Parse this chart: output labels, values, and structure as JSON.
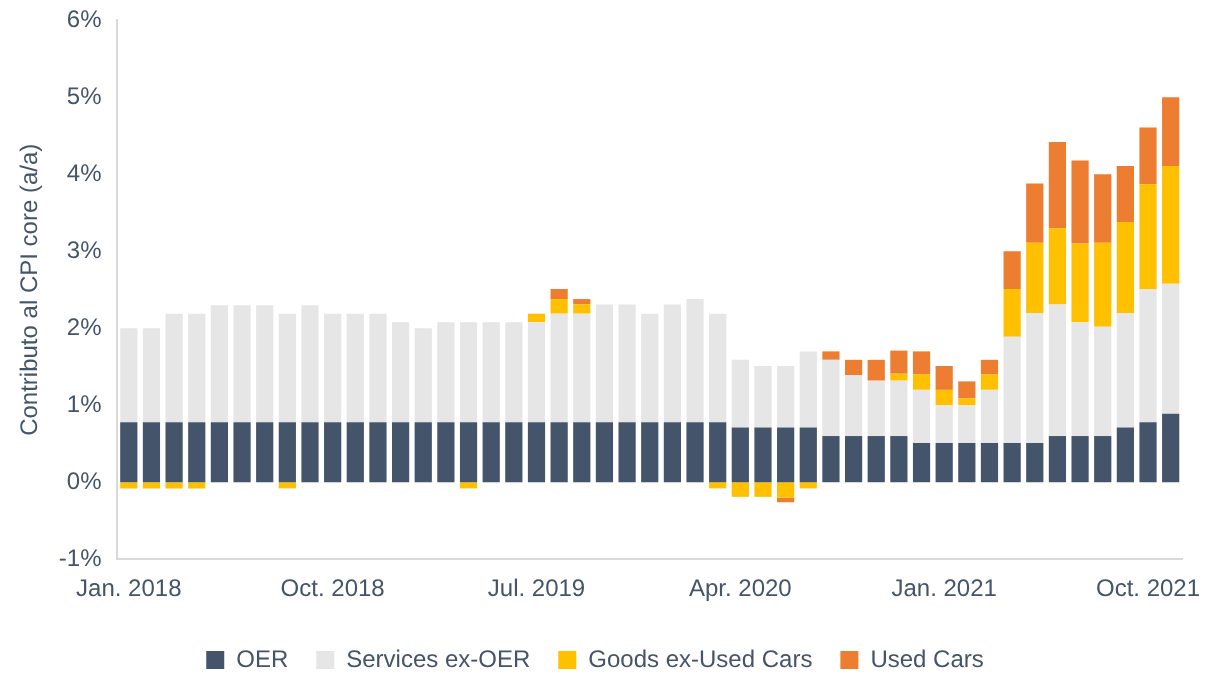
{
  "chart_data": {
    "type": "bar",
    "stacked": true,
    "ylabel": "Contributo al CPI core (a/a)",
    "categories": [
      "Jan. 2018",
      null,
      null,
      null,
      null,
      null,
      null,
      null,
      null,
      "Oct. 2018",
      null,
      null,
      null,
      null,
      null,
      null,
      null,
      null,
      "Jul. 2019",
      null,
      null,
      null,
      null,
      null,
      null,
      null,
      null,
      "Apr. 2020",
      null,
      null,
      null,
      null,
      null,
      null,
      null,
      null,
      "Jan. 2021",
      null,
      null,
      null,
      null,
      null,
      null,
      null,
      null,
      "Oct. 2021",
      null
    ],
    "series": [
      {
        "name": "OER",
        "color": "#44546a",
        "values": [
          0.78,
          0.78,
          0.78,
          0.78,
          0.78,
          0.78,
          0.78,
          0.78,
          0.78,
          0.78,
          0.78,
          0.78,
          0.78,
          0.78,
          0.78,
          0.78,
          0.78,
          0.78,
          0.78,
          0.78,
          0.78,
          0.78,
          0.78,
          0.78,
          0.78,
          0.78,
          0.78,
          0.71,
          0.71,
          0.71,
          0.71,
          0.6,
          0.6,
          0.6,
          0.6,
          0.51,
          0.51,
          0.51,
          0.51,
          0.51,
          0.51,
          0.6,
          0.6,
          0.6,
          0.71,
          0.78,
          0.89
        ]
      },
      {
        "name": "Services ex-OER",
        "color": "#e7e6e6",
        "values": [
          1.22,
          1.22,
          1.41,
          1.41,
          1.52,
          1.52,
          1.52,
          1.41,
          1.52,
          1.41,
          1.41,
          1.41,
          1.3,
          1.22,
          1.3,
          1.3,
          1.3,
          1.3,
          1.3,
          1.41,
          1.41,
          1.53,
          1.53,
          1.41,
          1.53,
          1.6,
          1.41,
          0.88,
          0.8,
          0.8,
          0.99,
          0.99,
          0.79,
          0.72,
          0.72,
          0.69,
          0.49,
          0.49,
          0.69,
          1.38,
          1.69,
          1.71,
          1.48,
          1.42,
          1.49,
          1.73,
          1.69
        ]
      },
      {
        "name": "Goods ex-Used Cars",
        "color": "#ffc000",
        "values": [
          -0.08,
          -0.08,
          -0.08,
          -0.08,
          null,
          null,
          null,
          -0.08,
          null,
          null,
          null,
          null,
          null,
          null,
          null,
          -0.08,
          null,
          null,
          0.11,
          0.19,
          0.12,
          null,
          null,
          null,
          null,
          null,
          -0.08,
          -0.19,
          -0.19,
          -0.2,
          -0.08,
          null,
          null,
          null,
          0.09,
          0.2,
          0.2,
          0.09,
          0.2,
          0.62,
          0.91,
          0.99,
          1.02,
          1.09,
          1.18,
          1.36,
          1.53
        ]
      },
      {
        "name": "Used Cars",
        "color": "#ed7d31",
        "values": [
          null,
          null,
          null,
          null,
          null,
          null,
          null,
          null,
          null,
          null,
          null,
          null,
          null,
          null,
          null,
          null,
          null,
          null,
          null,
          0.13,
          0.07,
          null,
          null,
          null,
          null,
          null,
          null,
          null,
          null,
          -0.06,
          null,
          0.11,
          0.2,
          0.27,
          0.3,
          0.3,
          0.31,
          0.22,
          0.19,
          0.49,
          0.77,
          1.12,
          1.08,
          0.89,
          0.73,
          0.74,
          0.89
        ]
      }
    ],
    "ylim": [
      -1,
      6
    ],
    "yticks": [
      {
        "value": -1,
        "label": "-1%"
      },
      {
        "value": 0,
        "label": "0%"
      },
      {
        "value": 1,
        "label": "1%"
      },
      {
        "value": 2,
        "label": "2%"
      },
      {
        "value": 3,
        "label": "3%"
      },
      {
        "value": 4,
        "label": "4%"
      },
      {
        "value": 5,
        "label": "5%"
      },
      {
        "value": 6,
        "label": "6%"
      }
    ],
    "grid": false,
    "legend": "bottom"
  }
}
